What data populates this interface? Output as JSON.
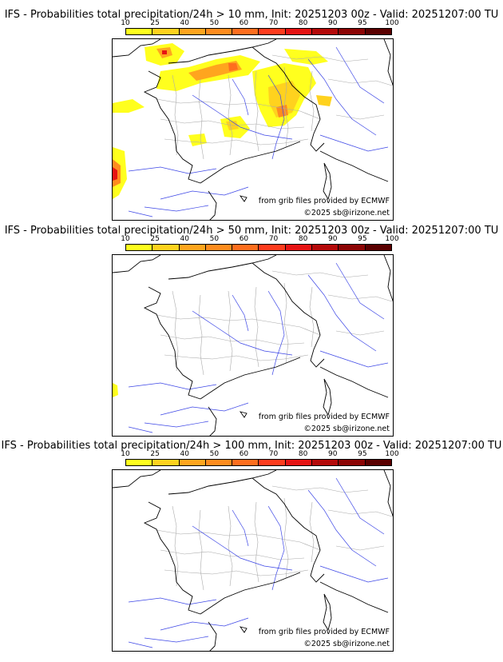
{
  "colorbar": {
    "ticks": [
      "10",
      "25",
      "40",
      "50",
      "60",
      "70",
      "80",
      "90",
      "95",
      "100"
    ],
    "colors": [
      "#ffff1e",
      "#ffd21e",
      "#ffa51e",
      "#ff8c1e",
      "#ff6e1e",
      "#ff3c1e",
      "#e61414",
      "#b40a0a",
      "#8c0505",
      "#5a0000"
    ]
  },
  "panels": [
    {
      "title": "IFS - Probabilities total precipitation/24h > 10 mm, Init: 20251203 00z - Valid: 20251207:00 TU",
      "source_credit": "from grib files provided by ECMWF",
      "copyright": "©2025 sb@irizone.net"
    },
    {
      "title": "IFS - Probabilities total precipitation/24h > 50 mm, Init: 20251203 00z - Valid: 20251207:00 TU",
      "source_credit": "from grib files provided by ECMWF",
      "copyright": "©2025 sb@irizone.net"
    },
    {
      "title": "IFS - Probabilities total precipitation/24h > 100 mm, Init: 20251203 00z - Valid: 20251207:00 TU",
      "source_credit": "from grib files provided by ECMWF",
      "copyright": "©2025 sb@irizone.net"
    }
  ]
}
